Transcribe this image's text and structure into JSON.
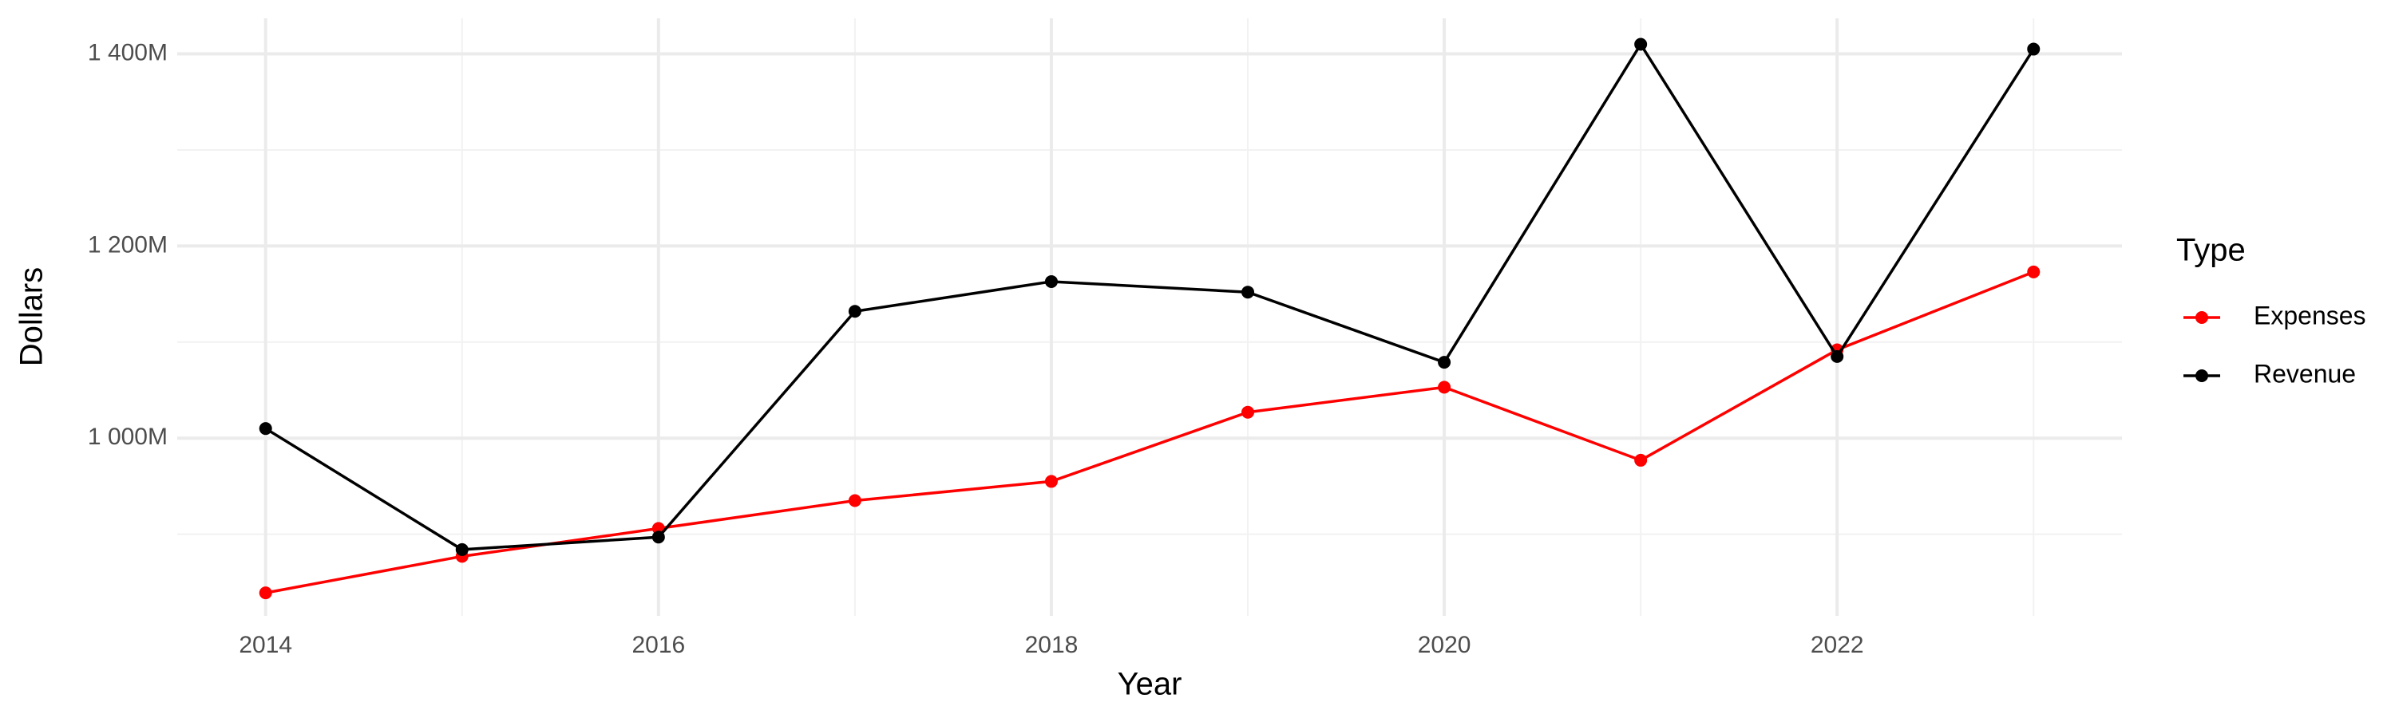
{
  "chart_data": {
    "type": "line",
    "x_label": "Year",
    "y_label": "Dollars",
    "x": [
      2014,
      2015,
      2016,
      2017,
      2018,
      2019,
      2020,
      2021,
      2022,
      2023
    ],
    "series": [
      {
        "name": "Expenses",
        "color": "#ff0000",
        "values": [
          839,
          877,
          906,
          935,
          955,
          1027,
          1053,
          977,
          1092,
          1173
        ]
      },
      {
        "name": "Revenue",
        "color": "#000000",
        "values": [
          1010,
          884,
          897,
          1132,
          1163,
          1152,
          1079,
          1410,
          1085,
          1405
        ]
      }
    ],
    "xlim": [
      2013.55,
      2023.45
    ],
    "xticks": [
      2014,
      2016,
      2018,
      2020,
      2022
    ],
    "xminor": [
      2015,
      2017,
      2019,
      2021,
      2023
    ],
    "ylim": [
      815,
      1437
    ],
    "yticks": [
      {
        "value": 1000,
        "label": "1 000M"
      },
      {
        "value": 1200,
        "label": "1 200M"
      },
      {
        "value": 1400,
        "label": "1 400M"
      }
    ],
    "yminor": [
      900,
      1100,
      1300
    ],
    "grid": true,
    "legend_title": "Type",
    "legend_position": "right"
  }
}
